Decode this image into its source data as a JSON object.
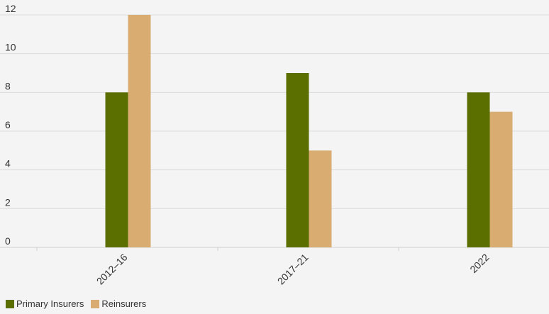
{
  "chart_data": {
    "type": "bar",
    "categories": [
      "2012–16",
      "2017–21",
      "2022"
    ],
    "series": [
      {
        "name": "Primary Insurers",
        "values": [
          8,
          9,
          8
        ],
        "color": "#5b6e00"
      },
      {
        "name": "Reinsurers",
        "values": [
          12,
          5,
          7
        ],
        "color": "#d9ac72"
      }
    ],
    "ylim": [
      0,
      12
    ],
    "yticks": [
      0,
      2,
      4,
      6,
      8,
      10,
      12
    ],
    "grid": true,
    "legend_position": "bottom-left",
    "title": "",
    "xlabel": "",
    "ylabel": ""
  }
}
